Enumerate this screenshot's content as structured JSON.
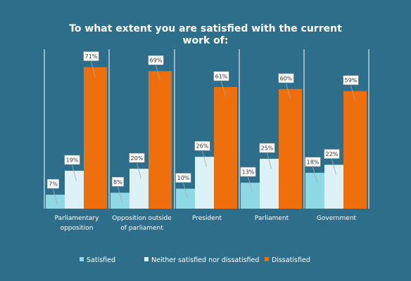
{
  "chart_data": {
    "type": "bar",
    "title_lines": [
      "To what extent you are satisfied with the current",
      "work of:"
    ],
    "categories": [
      [
        "Parliamentary",
        "opposition"
      ],
      [
        "Opposition outside",
        "of parliament"
      ],
      [
        "President"
      ],
      [
        "Parliament"
      ],
      [
        "Government"
      ]
    ],
    "series": [
      {
        "name": "Satisfied",
        "color": "#8fd9e6",
        "values": [
          7,
          8,
          10,
          13,
          18
        ]
      },
      {
        "name": "Neither satisfied nor dissatisfied",
        "color": "#ddf2f6",
        "values": [
          19,
          20,
          26,
          25,
          22
        ]
      },
      {
        "name": "Dissatisfied",
        "color": "#ee6f0c",
        "values": [
          71,
          69,
          61,
          60,
          59
        ]
      }
    ],
    "value_suffix": "%",
    "ylim": [
      0,
      80
    ],
    "legend_position": "bottom"
  },
  "colors": {
    "background": "#2d6f8b",
    "separator": "#ffffff",
    "label_box": "#ffffff",
    "label_border": "#999999"
  }
}
